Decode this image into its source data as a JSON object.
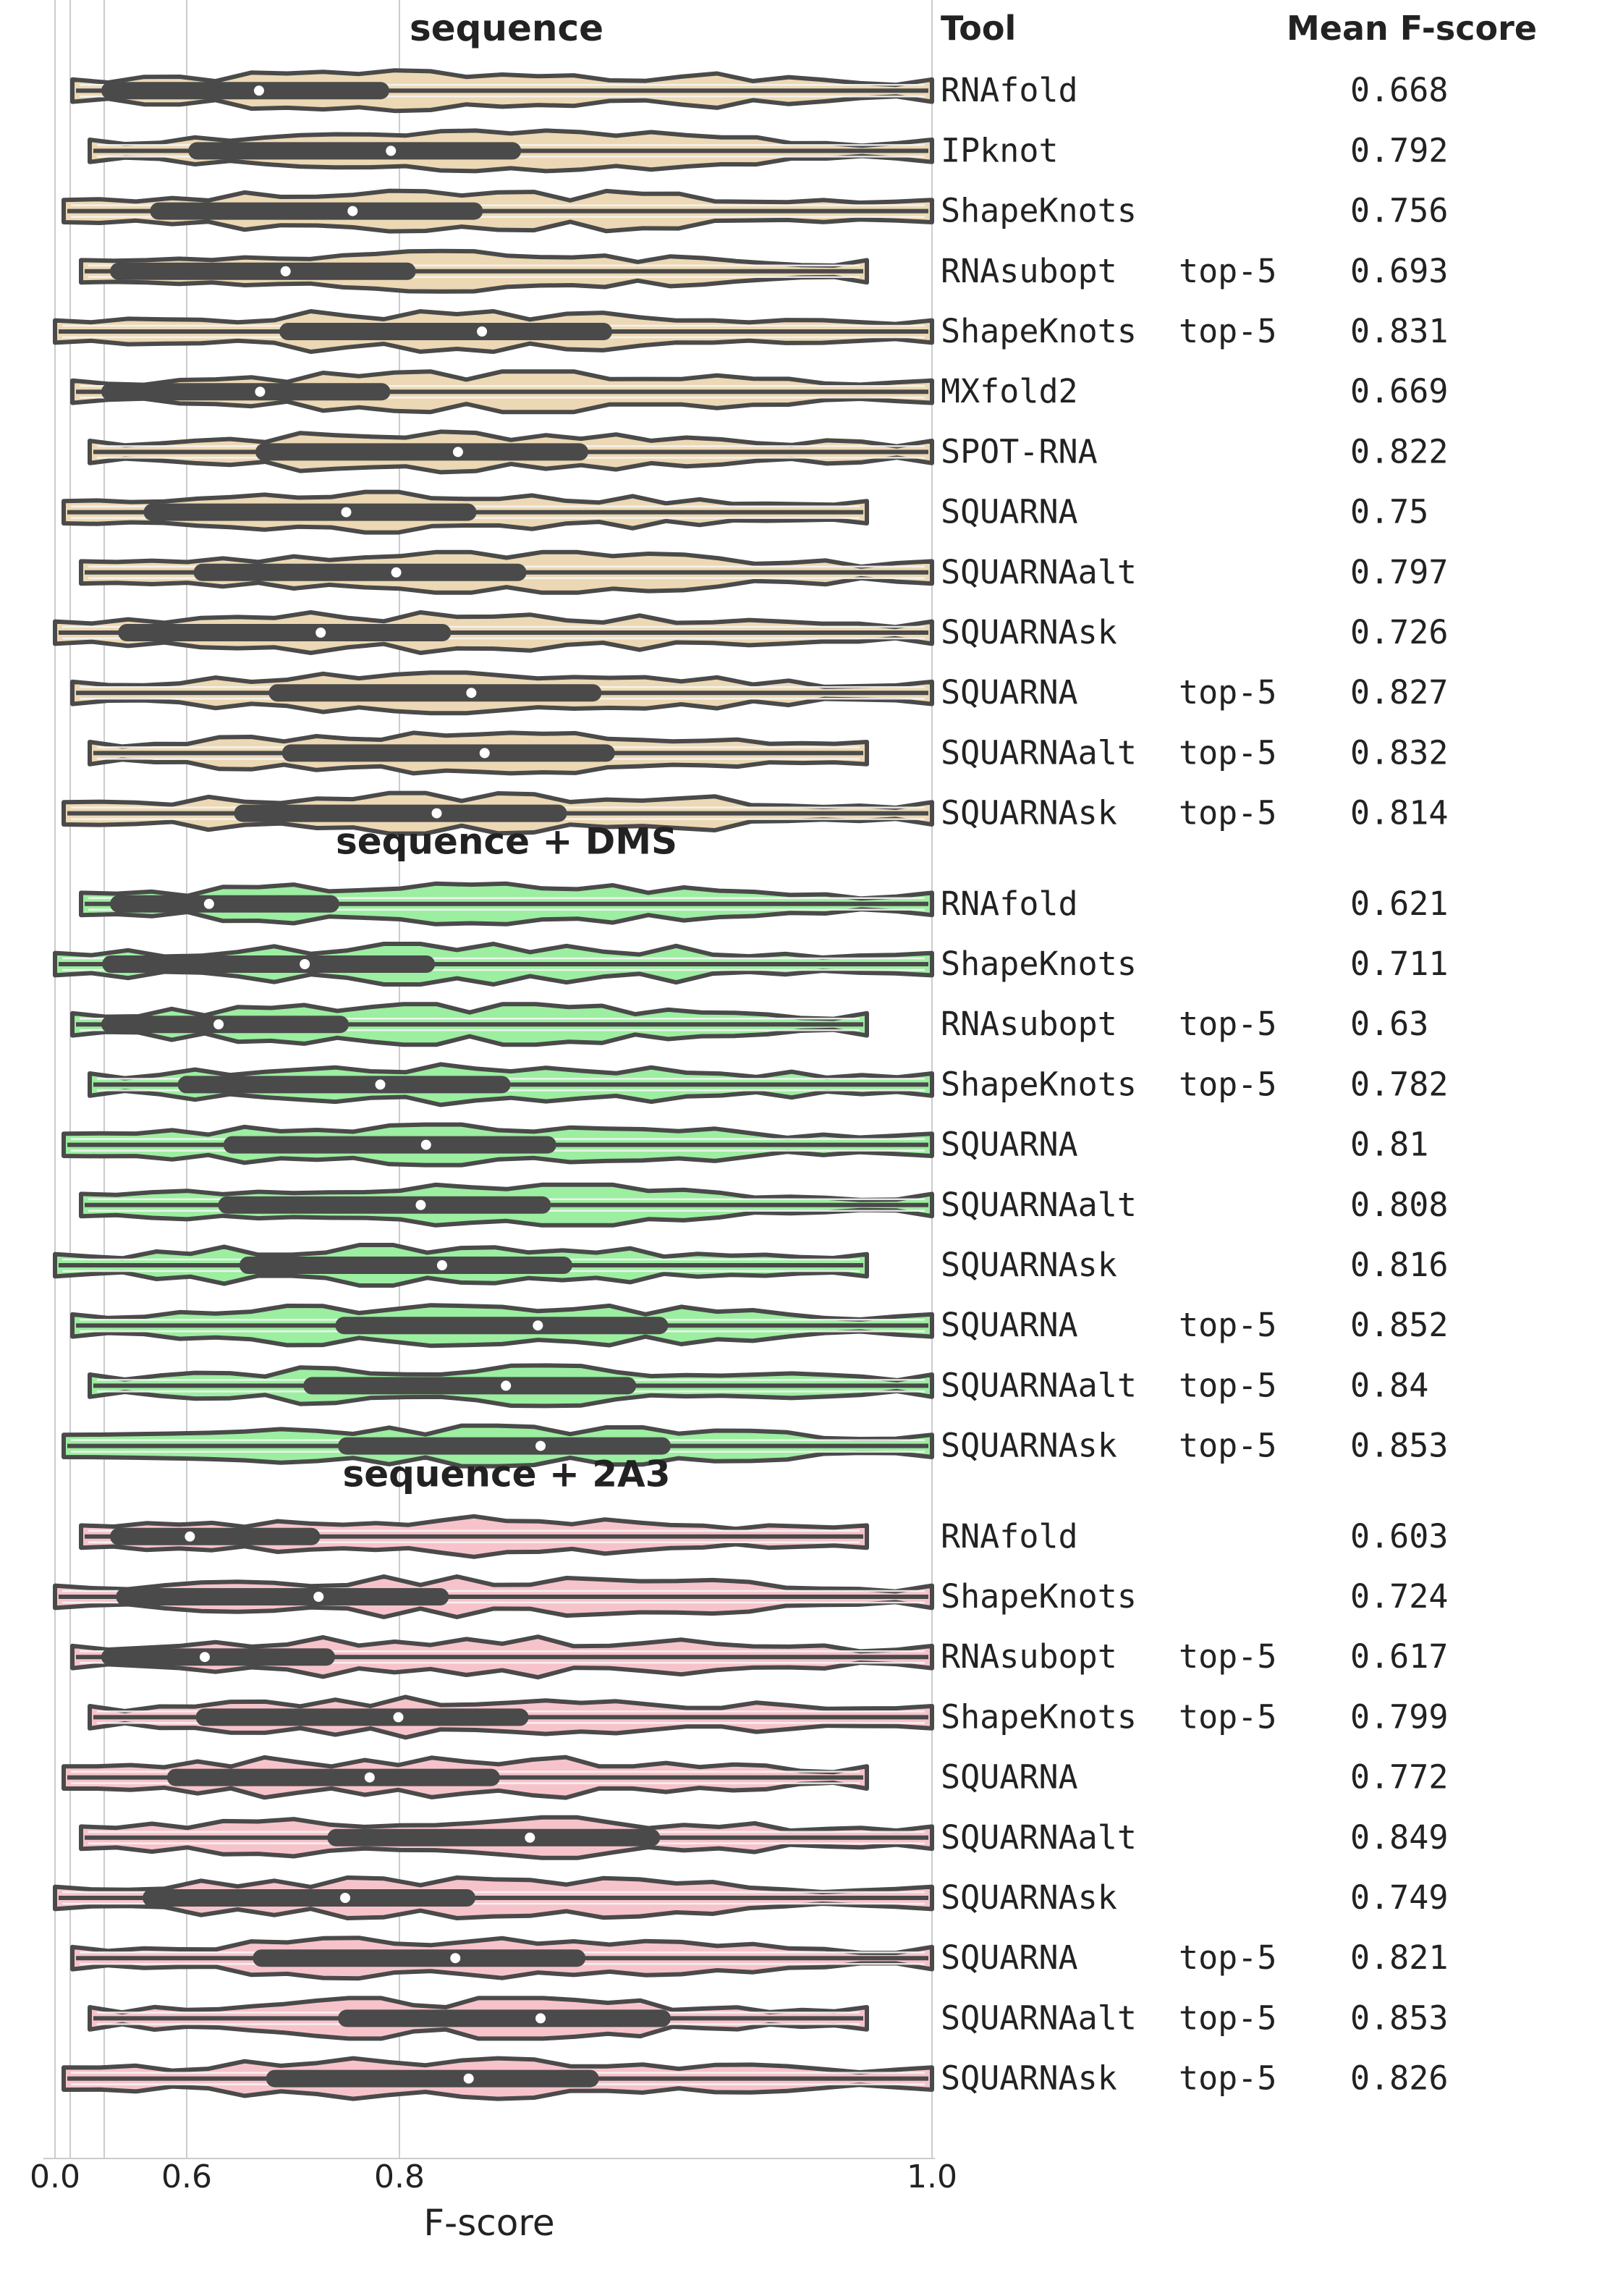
{
  "chart_data": {
    "type": "violin",
    "xlabel": "F-score",
    "xticks": [
      "0.0",
      "0.6",
      "0.8",
      "1.0"
    ],
    "header": {
      "tool": "Tool",
      "mean": "Mean F-score"
    },
    "colors": {
      "sequence": "#ecd8b4",
      "dms": "#9ceea0",
      "a3": "#f7c3cb",
      "outline": "#4a4a4a",
      "grid": "#cccccc"
    },
    "groups": [
      {
        "key": "sequence",
        "title": "sequence",
        "rows": [
          {
            "tool": "RNAfold",
            "mode": "",
            "mean": "0.668"
          },
          {
            "tool": "IPknot",
            "mode": "",
            "mean": "0.792"
          },
          {
            "tool": "ShapeKnots",
            "mode": "",
            "mean": "0.756"
          },
          {
            "tool": "RNAsubopt",
            "mode": "top-5",
            "mean": "0.693"
          },
          {
            "tool": "ShapeKnots",
            "mode": "top-5",
            "mean": "0.831"
          },
          {
            "tool": "MXfold2",
            "mode": "",
            "mean": "0.669"
          },
          {
            "tool": "SPOT-RNA",
            "mode": "",
            "mean": "0.822"
          },
          {
            "tool": "SQUARNA",
            "mode": "",
            "mean": "0.75"
          },
          {
            "tool": "SQUARNAalt",
            "mode": "",
            "mean": "0.797"
          },
          {
            "tool": "SQUARNAsk",
            "mode": "",
            "mean": "0.726"
          },
          {
            "tool": "SQUARNA",
            "mode": "top-5",
            "mean": "0.827"
          },
          {
            "tool": "SQUARNAalt",
            "mode": "top-5",
            "mean": "0.832"
          },
          {
            "tool": "SQUARNAsk",
            "mode": "top-5",
            "mean": "0.814"
          }
        ]
      },
      {
        "key": "dms",
        "title": "sequence + DMS",
        "rows": [
          {
            "tool": "RNAfold",
            "mode": "",
            "mean": "0.621"
          },
          {
            "tool": "ShapeKnots",
            "mode": "",
            "mean": "0.711"
          },
          {
            "tool": "RNAsubopt",
            "mode": "top-5",
            "mean": "0.63"
          },
          {
            "tool": "ShapeKnots",
            "mode": "top-5",
            "mean": "0.782"
          },
          {
            "tool": "SQUARNA",
            "mode": "",
            "mean": "0.81"
          },
          {
            "tool": "SQUARNAalt",
            "mode": "",
            "mean": "0.808"
          },
          {
            "tool": "SQUARNAsk",
            "mode": "",
            "mean": "0.816"
          },
          {
            "tool": "SQUARNA",
            "mode": "top-5",
            "mean": "0.852"
          },
          {
            "tool": "SQUARNAalt",
            "mode": "top-5",
            "mean": "0.84"
          },
          {
            "tool": "SQUARNAsk",
            "mode": "top-5",
            "mean": "0.853"
          }
        ]
      },
      {
        "key": "a3",
        "title": "sequence + 2A3",
        "rows": [
          {
            "tool": "RNAfold",
            "mode": "",
            "mean": "0.603"
          },
          {
            "tool": "ShapeKnots",
            "mode": "",
            "mean": "0.724"
          },
          {
            "tool": "RNAsubopt",
            "mode": "top-5",
            "mean": "0.617"
          },
          {
            "tool": "ShapeKnots",
            "mode": "top-5",
            "mean": "0.799"
          },
          {
            "tool": "SQUARNA",
            "mode": "",
            "mean": "0.772"
          },
          {
            "tool": "SQUARNAalt",
            "mode": "",
            "mean": "0.849"
          },
          {
            "tool": "SQUARNAsk",
            "mode": "",
            "mean": "0.749"
          },
          {
            "tool": "SQUARNA",
            "mode": "top-5",
            "mean": "0.821"
          },
          {
            "tool": "SQUARNAalt",
            "mode": "top-5",
            "mean": "0.853"
          },
          {
            "tool": "SQUARNAsk",
            "mode": "top-5",
            "mean": "0.826"
          }
        ]
      }
    ]
  }
}
